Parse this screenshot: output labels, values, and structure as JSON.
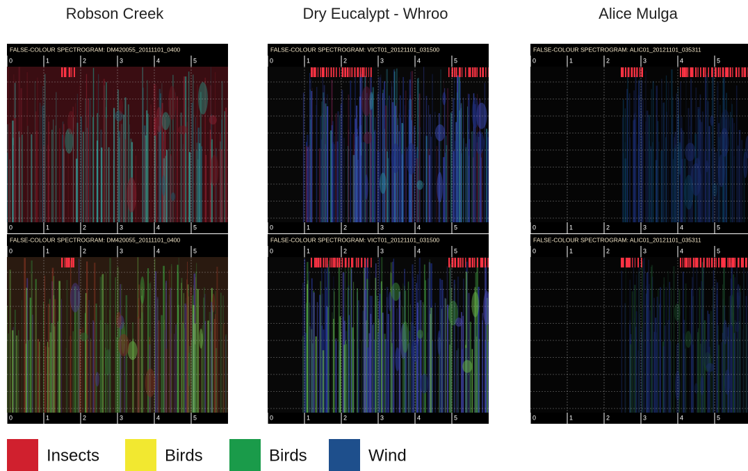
{
  "columns": [
    {
      "title": "Robson Creek",
      "panels": [
        {
          "header": "FALSE-COLOUR SPECTROGRAM: DM420055_20111101_0400"
        },
        {
          "header": "FALSE-COLOUR SPECTROGRAM: DM420055_20111101_0400"
        }
      ]
    },
    {
      "title": "Dry Eucalypt - Whroo",
      "panels": [
        {
          "header": "FALSE-COLOUR SPECTROGRAM: VICT01_20121101_031500"
        },
        {
          "header": "FALSE-COLOUR SPECTROGRAM: VICT01_20121101_031500"
        }
      ]
    },
    {
      "title": "Alice Mulga",
      "panels": [
        {
          "header": "FALSE-COLOUR SPECTROGRAM: ALIC01_20121101_035311"
        },
        {
          "header": "FALSE-COLOUR SPECTROGRAM: ALIC01_20121101_035311"
        }
      ]
    }
  ],
  "time_labels": [
    "0",
    "1",
    "2",
    "3",
    "4",
    "5"
  ],
  "legend": [
    {
      "label": "Insects",
      "color": "#d0202e"
    },
    {
      "label": "Birds",
      "color": "#f2e830"
    },
    {
      "label": "Birds",
      "color": "#1a9b4a"
    },
    {
      "label": "Wind",
      "color": "#1e4f8c"
    }
  ]
}
